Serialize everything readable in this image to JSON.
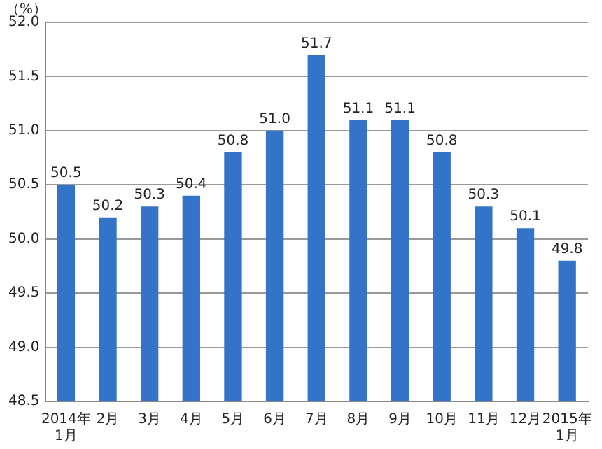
{
  "chart_data": {
    "type": "bar",
    "ylabel": "（%）",
    "categories": [
      "2014年\n1月",
      "2月",
      "3月",
      "4月",
      "5月",
      "6月",
      "7月",
      "8月",
      "9月",
      "10月",
      "11月",
      "12月",
      "2015年\n1月"
    ],
    "values": [
      50.5,
      50.2,
      50.3,
      50.4,
      50.8,
      51.0,
      51.7,
      51.1,
      51.1,
      50.8,
      50.3,
      50.1,
      49.8
    ],
    "value_labels": [
      "50.5",
      "50.2",
      "50.3",
      "50.4",
      "50.8",
      "51.0",
      "51.7",
      "51.1",
      "51.1",
      "50.8",
      "50.3",
      "50.1",
      "49.8"
    ],
    "color": "#3474c8",
    "ylim": [
      48.5,
      52.0
    ],
    "yticks": [
      48.5,
      {
        "value": 49,
        "label": "49.0"
      },
      49.5,
      {
        "value": 50,
        "label": "50.0"
      },
      50.5,
      {
        "value": 51,
        "label": "51.0"
      },
      51.5,
      {
        "value": 52,
        "label": "52.0"
      }
    ],
    "grid": "y"
  }
}
